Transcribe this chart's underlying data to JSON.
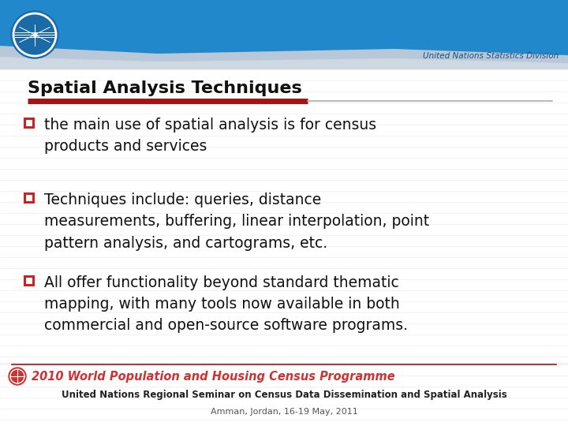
{
  "title": "Spatial Analysis Techniques",
  "subtitle_org": "United Nations Statistics Division",
  "bullet_points": [
    "the main use of spatial analysis is for census\nproducts and services",
    "Techniques include: queries, distance\nmeasurements, buffering, linear interpolation, point\npattern analysis, and cartograms, etc.",
    "All offer functionality beyond standard thematic\nmapping, with many tools now available in both\ncommercial and open-source software programs."
  ],
  "footer_line1": "2010 World Population and Housing Census Programme",
  "footer_line2": "United Nations Regional Seminar on Census Data Dissemination and Spatial Analysis",
  "footer_line3": "Amman, Jordan, 16-19 May, 2011",
  "header_bg_top": "#2288cc",
  "header_bg_mid": "#aabccc",
  "header_bg_bottom": "#c8d0d8",
  "title_color": "#111111",
  "bullet_color": "#111111",
  "divider_red": "#aa1111",
  "divider_gray": "#aaaaaa",
  "bullet_marker_color": "#cc2222",
  "footer_programme_color": "#cc3333",
  "footer_seminar_color": "#222222",
  "footer_location_color": "#555555",
  "content_bg": "#f2f2f2"
}
